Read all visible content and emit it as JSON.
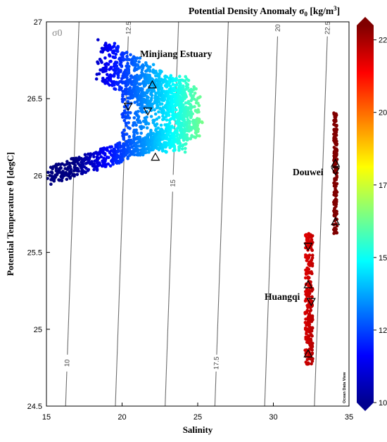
{
  "chart_data": {
    "type": "scatter",
    "title": "Potential Density Anomaly σ₀ [kg/m³]",
    "title_main": "Potential Density Anomaly σ",
    "title_sub": "0",
    "title_unit_pre": " [kg/m",
    "title_unit_sup": "3",
    "title_unit_post": "]",
    "xlabel": "Salinity",
    "ylabel": "Potential Temperature θ [degC]",
    "xlim": [
      15,
      35
    ],
    "ylim": [
      24.5,
      27
    ],
    "xticks": [
      "15",
      "20",
      "25",
      "30",
      "35"
    ],
    "yticks": [
      "24.5",
      "25",
      "25.5",
      "26",
      "26.5",
      "27"
    ],
    "colorbar": {
      "range": [
        10,
        23
      ],
      "ticks": [
        "10",
        "12.5",
        "15",
        "17.5",
        "20",
        "22.5"
      ],
      "colormap": "jet"
    },
    "contour_label": "σ0",
    "contours": [
      {
        "label": "10",
        "value": 10
      },
      {
        "label": "12.5",
        "value": 12.5
      },
      {
        "label": "15",
        "value": 15
      },
      {
        "label": "17.5",
        "value": 17.5
      },
      {
        "label": "20",
        "value": 20
      },
      {
        "label": "22.5",
        "value": 22.5
      }
    ],
    "regions": [
      {
        "name": "Minjiang Estuary",
        "salinity_range": [
          15.2,
          25.1
        ],
        "temperature_range": [
          25.97,
          26.77
        ],
        "sigma0_range": [
          10.5,
          15.5
        ]
      },
      {
        "name": "Douwei",
        "salinity_range": [
          33.9,
          34.2
        ],
        "temperature_range": [
          25.62,
          26.41
        ],
        "sigma0_range": [
          22.0,
          22.8
        ]
      },
      {
        "name": "Huangqi",
        "salinity_range": [
          32.1,
          32.8
        ],
        "temperature_range": [
          24.77,
          25.63
        ],
        "sigma0_range": [
          21.0,
          21.8
        ]
      }
    ],
    "markers": [
      {
        "shape": "up-triangle",
        "salinity": 22.0,
        "temperature": 26.59
      },
      {
        "shape": "down-triangle",
        "salinity": 20.4,
        "temperature": 26.45
      },
      {
        "shape": "down-triangle",
        "salinity": 21.7,
        "temperature": 26.42
      },
      {
        "shape": "up-triangle",
        "salinity": 22.2,
        "temperature": 26.12
      },
      {
        "shape": "up-triangle",
        "salinity": 34.1,
        "temperature": 26.08
      },
      {
        "shape": "down-triangle",
        "salinity": 34.1,
        "temperature": 26.03
      },
      {
        "shape": "up-triangle",
        "salinity": 34.1,
        "temperature": 25.7
      },
      {
        "shape": "down-triangle",
        "salinity": 32.3,
        "temperature": 25.54
      },
      {
        "shape": "up-triangle",
        "salinity": 32.3,
        "temperature": 25.29
      },
      {
        "shape": "down-triangle",
        "salinity": 32.5,
        "temperature": 25.18
      },
      {
        "shape": "up-triangle",
        "salinity": 32.3,
        "temperature": 24.84
      }
    ],
    "credit": "Ocean Data View"
  }
}
